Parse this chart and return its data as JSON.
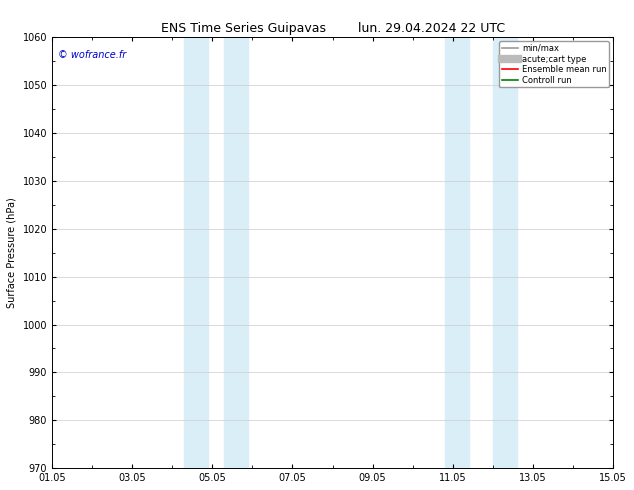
{
  "title_left": "ENS Time Series Guipavas",
  "title_right": "lun. 29.04.2024 22 UTC",
  "ylabel": "Surface Pressure (hPa)",
  "ylim": [
    970,
    1060
  ],
  "yticks": [
    970,
    980,
    990,
    1000,
    1010,
    1020,
    1030,
    1040,
    1050,
    1060
  ],
  "xlim": [
    0,
    14
  ],
  "xtick_positions": [
    0,
    2,
    4,
    6,
    8,
    10,
    12,
    14
  ],
  "xtick_labels": [
    "01.05",
    "03.05",
    "05.05",
    "07.05",
    "09.05",
    "11.05",
    "13.05",
    "15.05"
  ],
  "shaded_bands": [
    {
      "xmin": 3.3,
      "xmax": 3.9
    },
    {
      "xmin": 4.3,
      "xmax": 4.9
    },
    {
      "xmin": 9.8,
      "xmax": 10.4
    },
    {
      "xmin": 11.0,
      "xmax": 11.6
    }
  ],
  "band_color": "#daeef7",
  "watermark": "© wofrance.fr",
  "legend_entries": [
    {
      "label": "min/max",
      "color": "#999999",
      "lw": 1.2,
      "style": "-"
    },
    {
      "label": "acute;cart type",
      "color": "#bbbbbb",
      "lw": 6,
      "style": "-"
    },
    {
      "label": "Ensemble mean run",
      "color": "red",
      "lw": 1.2,
      "style": "-"
    },
    {
      "label": "Controll run",
      "color": "green",
      "lw": 1.2,
      "style": "-"
    }
  ],
  "background_color": "#ffffff",
  "plot_bg_color": "#ffffff",
  "title_fontsize": 9,
  "axis_fontsize": 7,
  "tick_fontsize": 7,
  "watermark_fontsize": 7
}
